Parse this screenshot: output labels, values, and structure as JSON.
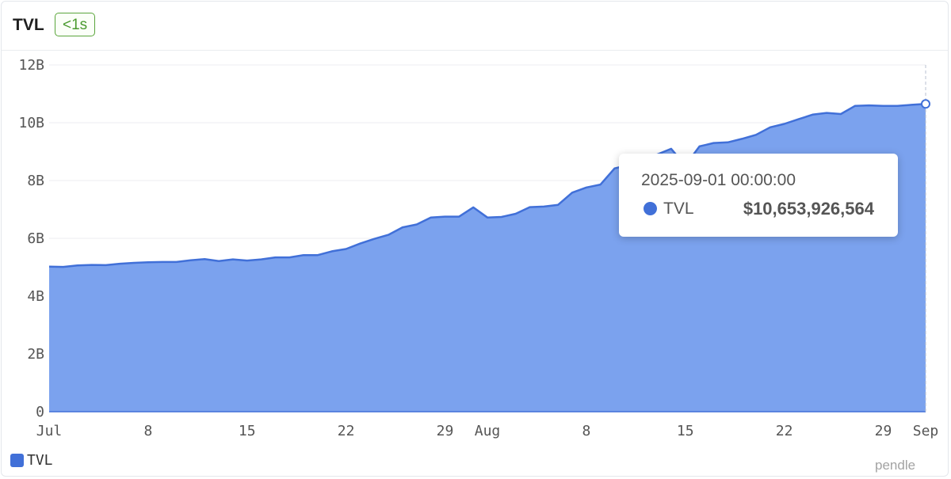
{
  "header": {
    "title": "TVL",
    "badge": "<1s"
  },
  "tooltip": {
    "date": "2025-09-01 00:00:00",
    "series": "TVL",
    "value": "$10,653,926,564"
  },
  "legend": {
    "label": "TVL"
  },
  "brand": "pendle",
  "colors": {
    "line": "#4170d8",
    "area": "#7ba2ee",
    "badge": "#5aa53b"
  },
  "chart_data": {
    "type": "area",
    "ylim": [
      0,
      12
    ],
    "yticks": [
      {
        "value": 0,
        "label": "0"
      },
      {
        "value": 2,
        "label": "2B"
      },
      {
        "value": 4,
        "label": "4B"
      },
      {
        "value": 6,
        "label": "6B"
      },
      {
        "value": 8,
        "label": "8B"
      },
      {
        "value": 10,
        "label": "10B"
      },
      {
        "value": 12,
        "label": "12B"
      }
    ],
    "xticks": [
      {
        "date": "2025-07-01",
        "label": "Jul"
      },
      {
        "date": "2025-07-08",
        "label": "8"
      },
      {
        "date": "2025-07-15",
        "label": "15"
      },
      {
        "date": "2025-07-22",
        "label": "22"
      },
      {
        "date": "2025-07-29",
        "label": "29"
      },
      {
        "date": "2025-08-01",
        "label": "Aug"
      },
      {
        "date": "2025-08-08",
        "label": "8"
      },
      {
        "date": "2025-08-15",
        "label": "15"
      },
      {
        "date": "2025-08-22",
        "label": "22"
      },
      {
        "date": "2025-08-29",
        "label": "29"
      },
      {
        "date": "2025-09-01",
        "label": "Sep"
      }
    ],
    "series": [
      {
        "name": "TVL",
        "unit": "B",
        "x": [
          "2025-07-01",
          "2025-07-02",
          "2025-07-03",
          "2025-07-04",
          "2025-07-05",
          "2025-07-06",
          "2025-07-07",
          "2025-07-08",
          "2025-07-09",
          "2025-07-10",
          "2025-07-11",
          "2025-07-12",
          "2025-07-13",
          "2025-07-14",
          "2025-07-15",
          "2025-07-16",
          "2025-07-17",
          "2025-07-18",
          "2025-07-19",
          "2025-07-20",
          "2025-07-21",
          "2025-07-22",
          "2025-07-23",
          "2025-07-24",
          "2025-07-25",
          "2025-07-26",
          "2025-07-27",
          "2025-07-28",
          "2025-07-29",
          "2025-07-30",
          "2025-07-31",
          "2025-08-01",
          "2025-08-02",
          "2025-08-03",
          "2025-08-04",
          "2025-08-05",
          "2025-08-06",
          "2025-08-07",
          "2025-08-08",
          "2025-08-09",
          "2025-08-10",
          "2025-08-11",
          "2025-08-12",
          "2025-08-13",
          "2025-08-14",
          "2025-08-15",
          "2025-08-16",
          "2025-08-17",
          "2025-08-18",
          "2025-08-19",
          "2025-08-20",
          "2025-08-21",
          "2025-08-22",
          "2025-08-23",
          "2025-08-24",
          "2025-08-25",
          "2025-08-26",
          "2025-08-27",
          "2025-08-28",
          "2025-08-29",
          "2025-08-30",
          "2025-08-31",
          "2025-09-01"
        ],
        "values": [
          5.02,
          5.01,
          5.06,
          5.08,
          5.07,
          5.12,
          5.15,
          5.17,
          5.18,
          5.18,
          5.24,
          5.28,
          5.21,
          5.27,
          5.23,
          5.27,
          5.34,
          5.34,
          5.42,
          5.42,
          5.55,
          5.63,
          5.82,
          5.98,
          6.12,
          6.38,
          6.48,
          6.72,
          6.75,
          6.75,
          7.07,
          6.72,
          6.74,
          6.85,
          7.08,
          7.1,
          7.16,
          7.58,
          7.76,
          7.86,
          8.42,
          8.54,
          8.78,
          8.9,
          9.1,
          8.52,
          9.18,
          9.3,
          9.32,
          9.44,
          9.58,
          9.84,
          9.96,
          10.12,
          10.28,
          10.34,
          10.3,
          10.58,
          10.6,
          10.58,
          10.58,
          10.62,
          10.65
        ]
      }
    ]
  }
}
